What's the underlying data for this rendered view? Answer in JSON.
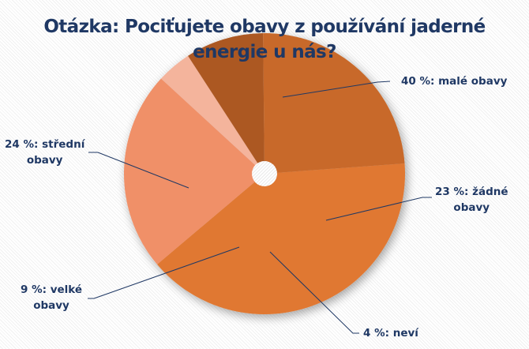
{
  "title": {
    "line1": "Otázka: Pociťujete obavy z používání jaderné",
    "line2": "energie u nás?"
  },
  "labels": {
    "male": {
      "line1": "40 %: malé obavy"
    },
    "zadne": {
      "line1": "23 %: žádné",
      "line2": "obavy"
    },
    "nevi": {
      "line1": "4 %: neví"
    },
    "velke": {
      "line1": "9 %: velké",
      "line2": "obavy"
    },
    "stredni": {
      "line1": "24 %: střední",
      "line2": "obavy"
    }
  },
  "colors": {
    "male": "#e07830",
    "zadne": "#f09068",
    "nevi": "#f4b49c",
    "velke": "#ac5822",
    "stredni": "#c8692a",
    "text": "#1f3864",
    "leader": "#1f3864"
  },
  "chart_data": {
    "type": "pie",
    "title": "Otázka: Pociťujete obavy z používání jaderné energie u nás?",
    "categories": [
      "malé obavy",
      "žádné obavy",
      "neví",
      "velké obavy",
      "střední obavy"
    ],
    "values": [
      40,
      23,
      4,
      9,
      24
    ],
    "unit": "%",
    "data_labels": [
      "40 %: malé obavy",
      "23 %: žádné obavy",
      "4 %: neví",
      "9 %: velké obavy",
      "24 %: střední obavy"
    ],
    "legend": "none",
    "donut_hole": true
  }
}
